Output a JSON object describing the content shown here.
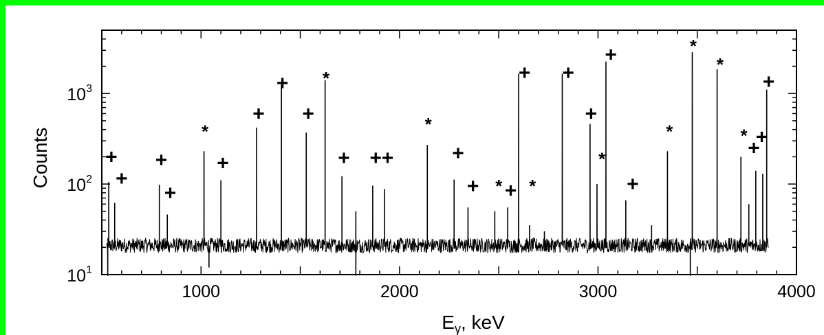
{
  "chart_data": {
    "type": "line",
    "xlabel": "E",
    "xlabel_sub": "γ",
    "xlabel_unit": ", keV",
    "ylabel": "Counts",
    "xlim": [
      500,
      4000
    ],
    "ylim": [
      10,
      5000
    ],
    "y_scale": "log",
    "x_ticks": [
      1000,
      2000,
      3000,
      4000
    ],
    "x_tick_labels": [
      "1000",
      "2000",
      "3000",
      "4000"
    ],
    "y_ticks": [
      {
        "value": 10,
        "base": "10",
        "exp": "1"
      },
      {
        "value": 100,
        "base": "10",
        "exp": "2"
      },
      {
        "value": 1000,
        "base": "10",
        "exp": "3"
      }
    ],
    "background_level": 21,
    "peaks": [
      {
        "x": 535,
        "y": 105
      },
      {
        "x": 565,
        "y": 62
      },
      {
        "x": 790,
        "y": 98
      },
      {
        "x": 830,
        "y": 46
      },
      {
        "x": 1015,
        "y": 230
      },
      {
        "x": 1100,
        "y": 110
      },
      {
        "x": 1280,
        "y": 420
      },
      {
        "x": 1405,
        "y": 1250
      },
      {
        "x": 1530,
        "y": 370
      },
      {
        "x": 1625,
        "y": 1400
      },
      {
        "x": 1710,
        "y": 122
      },
      {
        "x": 1780,
        "y": 50
      },
      {
        "x": 1865,
        "y": 96
      },
      {
        "x": 1925,
        "y": 88
      },
      {
        "x": 2140,
        "y": 270
      },
      {
        "x": 2275,
        "y": 112
      },
      {
        "x": 2345,
        "y": 55
      },
      {
        "x": 2480,
        "y": 50
      },
      {
        "x": 2545,
        "y": 55
      },
      {
        "x": 2600,
        "y": 1650
      },
      {
        "x": 2655,
        "y": 35
      },
      {
        "x": 2730,
        "y": 30
      },
      {
        "x": 2820,
        "y": 1650
      },
      {
        "x": 2960,
        "y": 460
      },
      {
        "x": 2995,
        "y": 100
      },
      {
        "x": 3040,
        "y": 2250
      },
      {
        "x": 3140,
        "y": 66
      },
      {
        "x": 3270,
        "y": 35
      },
      {
        "x": 3350,
        "y": 230
      },
      {
        "x": 3475,
        "y": 2850
      },
      {
        "x": 3600,
        "y": 1850
      },
      {
        "x": 3720,
        "y": 200
      },
      {
        "x": 3760,
        "y": 60
      },
      {
        "x": 3795,
        "y": 140
      },
      {
        "x": 3830,
        "y": 130
      },
      {
        "x": 3850,
        "y": 1100
      }
    ],
    "dips": [
      {
        "x": 530,
        "y": 8
      },
      {
        "x": 1040,
        "y": 12
      },
      {
        "x": 1780,
        "y": 8
      },
      {
        "x": 3465,
        "y": 8
      }
    ],
    "annotations": [
      {
        "text": "+",
        "x": 548,
        "y": 200
      },
      {
        "text": "+",
        "x": 600,
        "y": 115
      },
      {
        "text": "+",
        "x": 800,
        "y": 185
      },
      {
        "text": "+",
        "x": 845,
        "y": 80
      },
      {
        "text": "*",
        "x": 1020,
        "y": 400
      },
      {
        "text": "+",
        "x": 1110,
        "y": 170
      },
      {
        "text": "+",
        "x": 1290,
        "y": 600
      },
      {
        "text": "+",
        "x": 1410,
        "y": 1300
      },
      {
        "text": "+",
        "x": 1540,
        "y": 600
      },
      {
        "text": "*",
        "x": 1630,
        "y": 1550
      },
      {
        "text": "+",
        "x": 1720,
        "y": 195
      },
      {
        "text": "+",
        "x": 1880,
        "y": 195
      },
      {
        "text": "+",
        "x": 1940,
        "y": 195
      },
      {
        "text": "*",
        "x": 2145,
        "y": 480
      },
      {
        "text": "+",
        "x": 2295,
        "y": 220
      },
      {
        "text": "+",
        "x": 2370,
        "y": 95
      },
      {
        "text": "*",
        "x": 2500,
        "y": 100
      },
      {
        "text": "+",
        "x": 2560,
        "y": 85
      },
      {
        "text": "*",
        "x": 2670,
        "y": 100
      },
      {
        "text": "+",
        "x": 2630,
        "y": 1700
      },
      {
        "text": "+",
        "x": 2850,
        "y": 1700
      },
      {
        "text": "+",
        "x": 2965,
        "y": 600
      },
      {
        "text": "*",
        "x": 3020,
        "y": 200
      },
      {
        "text": "+",
        "x": 3065,
        "y": 2700
      },
      {
        "text": "+",
        "x": 3175,
        "y": 100
      },
      {
        "text": "*",
        "x": 3360,
        "y": 400
      },
      {
        "text": "*",
        "x": 3480,
        "y": 5000
      },
      {
        "text": "*",
        "x": 3615,
        "y": 2200
      },
      {
        "text": "*",
        "x": 3735,
        "y": 360
      },
      {
        "text": "+",
        "x": 3785,
        "y": 250
      },
      {
        "text": "+",
        "x": 3825,
        "y": 330
      },
      {
        "text": "+",
        "x": 3860,
        "y": 1350
      }
    ]
  }
}
